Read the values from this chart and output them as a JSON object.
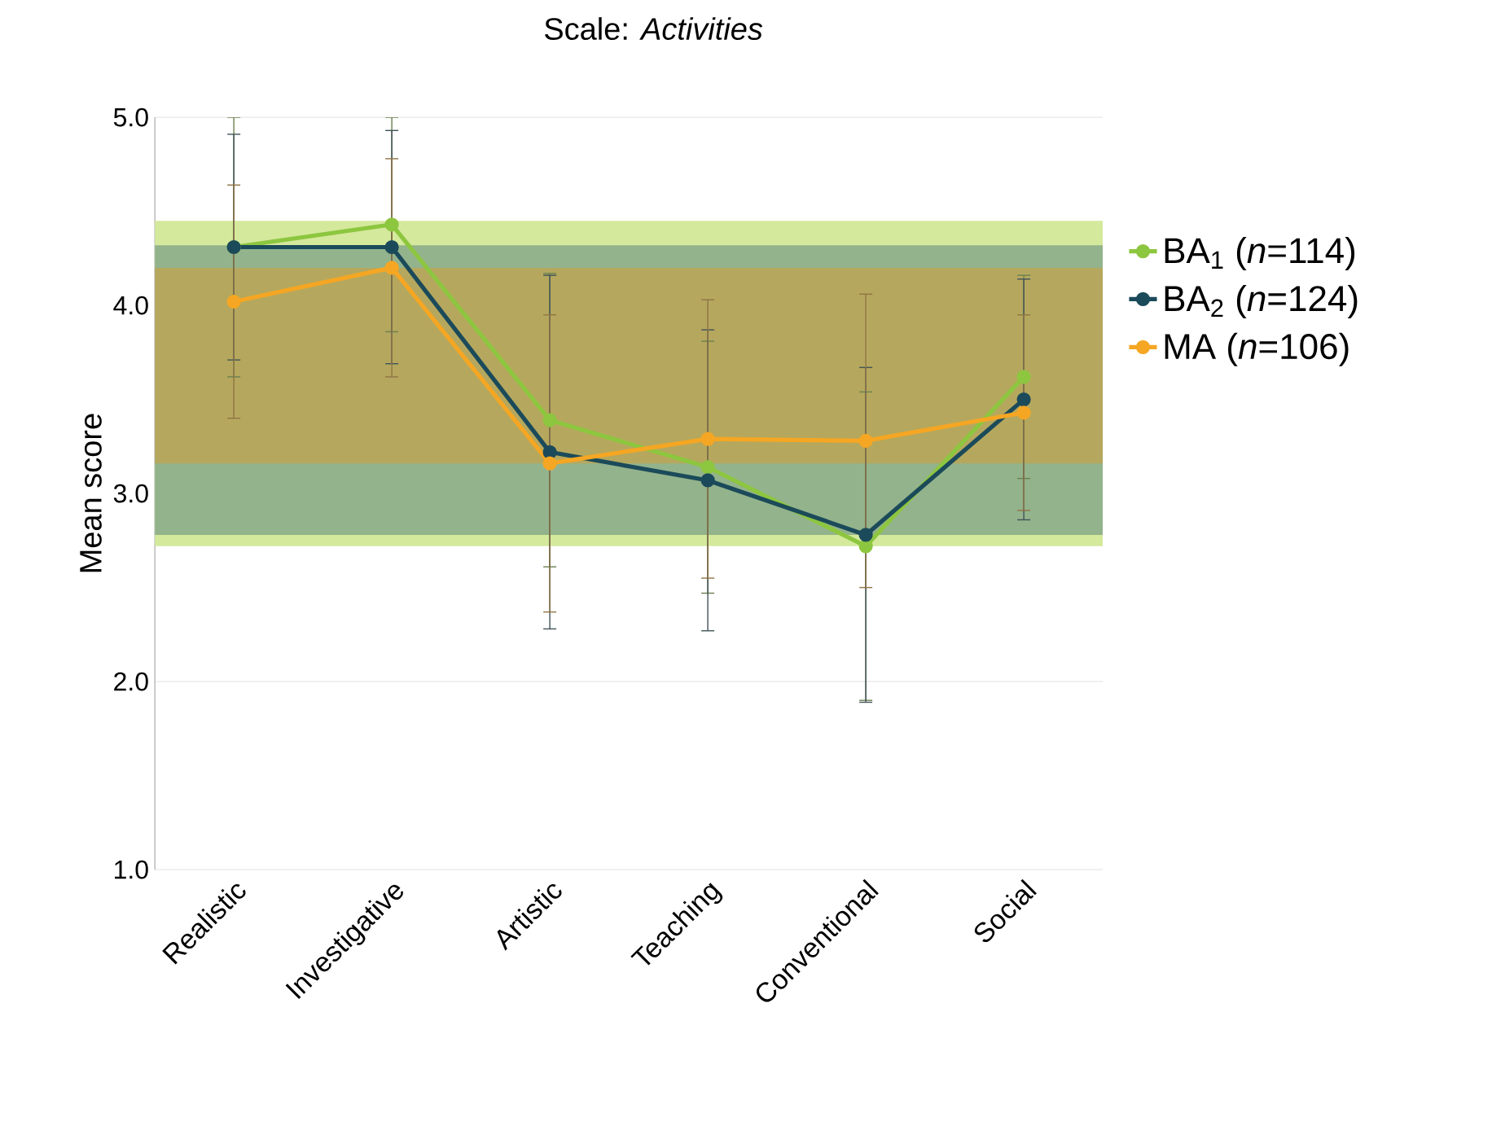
{
  "chart_data": {
    "type": "line",
    "title": "Scale: *Activities*",
    "ylabel": "Mean score",
    "categories": [
      "Realistic",
      "Investigative",
      "Artistic",
      "Teaching",
      "Conventional",
      "Social"
    ],
    "series": [
      {
        "name": "BA$_{1}$ (*n*=114)",
        "color": "#8dc63f",
        "values": [
          4.31,
          4.43,
          3.39,
          3.14,
          2.72,
          3.62
        ],
        "errors": [
          0.69,
          0.57,
          0.78,
          0.67,
          0.82,
          0.54
        ]
      },
      {
        "name": "BA$_{2}$ (*n*=124)",
        "color": "#1b4a5a",
        "values": [
          4.31,
          4.31,
          3.22,
          3.07,
          2.78,
          3.5
        ],
        "errors": [
          0.6,
          0.62,
          0.94,
          0.8,
          0.89,
          0.64
        ]
      },
      {
        "name": "MA (*n*=106)",
        "color": "#f5a623",
        "values": [
          4.02,
          4.2,
          3.16,
          3.29,
          3.28,
          3.43
        ],
        "errors": [
          0.62,
          0.58,
          0.79,
          0.74,
          0.78,
          0.52
        ]
      }
    ],
    "bands": [
      {
        "axis": "y",
        "from": 2.72,
        "to": 4.45,
        "color": "#d4e99c"
      },
      {
        "axis": "y",
        "from": 2.78,
        "to": 4.32,
        "color": "#93b38c"
      },
      {
        "axis": "y",
        "from": 3.16,
        "to": 4.2,
        "color": "#b5a85e"
      }
    ],
    "ylim": [
      1,
      5
    ],
    "yticks": [
      {
        "value": 1,
        "label": "1.0"
      },
      {
        "value": 2,
        "label": "2.0"
      },
      {
        "value": 3,
        "label": "3.0"
      },
      {
        "value": 4,
        "label": "4.0"
      },
      {
        "value": 5,
        "label": "5.0"
      }
    ],
    "grid": "y",
    "legend": "right",
    "marker": "circle",
    "line_style": "solid"
  }
}
